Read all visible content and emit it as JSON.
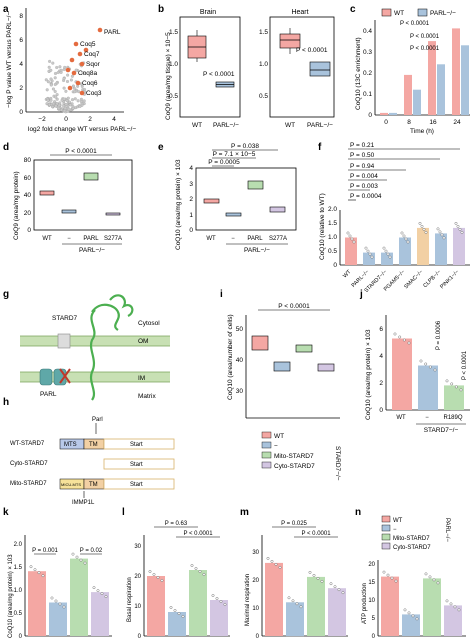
{
  "colors": {
    "wt": "#f4a7a3",
    "ko": "#a9c3dc",
    "green": "#b8ddb0",
    "purple": "#d3c6e2",
    "orange": "#f2d0a4",
    "volcano_hit": "#e46b3f",
    "volcano_grey": "#c9c9c9",
    "box_grey": "#e6e6e6"
  },
  "labels": {
    "a": "a",
    "b": "b",
    "c": "c",
    "d": "d",
    "e": "e",
    "f": "f",
    "g": "g",
    "h": "h",
    "i": "i",
    "j": "j",
    "k": "k",
    "l": "l",
    "m": "m",
    "n": "n"
  },
  "panel_a": {
    "ylabel": "−log P value WT versus PARL−/−",
    "xlabel": "log2 fold change WT versus PARL−/−",
    "yticks": [
      "0",
      "2",
      "4",
      "6",
      "8"
    ],
    "xticks": [
      "−2",
      "0",
      "2",
      "4"
    ],
    "hits": [
      "PARL",
      "Coq5",
      "Coq7",
      "Sqor",
      "Coq8a",
      "Coq6",
      "Coq3"
    ]
  },
  "panel_b": {
    "ylabel": "CoQ9 (area/mg tissue) × 10−5",
    "brain": {
      "title": "Brain",
      "p": "P < 0.0001",
      "categories": [
        "WT",
        "PARL−/−"
      ],
      "yticks": [
        "0.5",
        "1.0",
        "1.5"
      ]
    },
    "heart": {
      "title": "Heart",
      "p": "P < 0.0001",
      "categories": [
        "WT",
        "PARL−/−"
      ],
      "yticks": [
        "0.5",
        "1.0",
        "1.5"
      ]
    }
  },
  "panel_c": {
    "ylabel": "CoQ10 (13C enrichment)",
    "xlabel": "Time (h)",
    "legend": [
      "WT",
      "PARL−/−"
    ],
    "x": [
      "0",
      "8",
      "16",
      "24"
    ],
    "yticks": [
      "0",
      "0.1",
      "0.2",
      "0.3",
      "0.4"
    ],
    "pvals": [
      "P < 0.0001",
      "P < 0.0001",
      "P < 0.0001"
    ]
  },
  "panel_d": {
    "ylabel": "CoQ9 (area/mg protein)",
    "yticks": [
      "0",
      "20",
      "40",
      "60",
      "80"
    ],
    "categories": [
      "WT",
      "−",
      "PARL",
      "S277A"
    ],
    "group": "PARL−/−",
    "p": "P < 0.0001"
  },
  "panel_e": {
    "ylabel": "CoQ10 (area/mg protein) × 103",
    "yticks": [
      "0",
      "1",
      "2",
      "3",
      "4"
    ],
    "categories": [
      "WT",
      "−",
      "PARL",
      "S277A"
    ],
    "group": "PARL−/−",
    "pvals": [
      "P = 0.038",
      "P = 7.1 × 10−5",
      "P = 0.0005"
    ]
  },
  "panel_f": {
    "ylabel": "CoQ10 (relative to WT)",
    "yticks": [
      "0",
      "0.5",
      "1.0",
      "1.5",
      "2.0"
    ],
    "categories": [
      "WT",
      "PARL−/−",
      "STARD7−/−",
      "PGAM5−/−",
      "SMAC−/−",
      "CLPB−/−",
      "PINK1−/−"
    ],
    "pvals": [
      "P = 0.21",
      "P = 0.50",
      "P = 0.94",
      "P = 0.004",
      "P = 0.003",
      "P = 0.0004"
    ]
  },
  "panel_g": {
    "labels": [
      "STARD7",
      "Cytosol",
      "OM",
      "IM",
      "PARL",
      "Matrix"
    ]
  },
  "panel_h": {
    "rows": [
      "WT-STARD7",
      "Cyto-STARD7",
      "Mito-STARD7"
    ],
    "segments": {
      "mts": "MTS",
      "tm": "TM",
      "start": "Start",
      "micu": "MICU-MTS"
    },
    "annot": {
      "parl": "Parl",
      "immp1l": "IMMP1L"
    }
  },
  "panel_i": {
    "ylabel": "CoQ10 (area/number of cells)",
    "yticks": [
      "30",
      "40",
      "50"
    ],
    "p": "P < 0.0001",
    "legend": [
      "WT",
      "−",
      "Mito-STARD7",
      "Cyto-STARD7"
    ],
    "group": "STARD7−/−"
  },
  "panel_j": {
    "ylabel": "CoQ10 (area/mg protein) × 103",
    "yticks": [
      "0",
      "2",
      "4",
      "6"
    ],
    "categories": [
      "WT",
      "−",
      "R189Q"
    ],
    "group": "STARD7−/−",
    "pvals": [
      "P = 0.0006",
      "P < 0.0001"
    ]
  },
  "panel_k": {
    "ylabel": "CoQ10 (area/mg protein) × 103",
    "yticks": [
      "0",
      "0.5",
      "1.0",
      "1.5",
      "2.0"
    ],
    "pvals": [
      "P = 0.001",
      "P = 0.02"
    ]
  },
  "panel_l": {
    "ylabel": "Basal respiration",
    "yticks": [
      "0",
      "10",
      "20",
      "30"
    ],
    "pvals": [
      "P = 0.63",
      "P < 0.0001"
    ]
  },
  "panel_m": {
    "ylabel": "Maximal respiration",
    "yticks": [
      "0",
      "10",
      "20",
      "30"
    ],
    "pvals": [
      "P = 0.025",
      "P < 0.0001"
    ]
  },
  "panel_n": {
    "ylabel": "ATP production",
    "yticks": [
      "0",
      "5",
      "10",
      "15",
      "20"
    ],
    "legend": [
      "WT",
      "−",
      "Mito-STARD7",
      "Cyto-STARD7"
    ],
    "group": "PARL−/−"
  },
  "chart_data": [
    {
      "panel": "b-brain",
      "type": "box",
      "categories": [
        "WT",
        "PARL−/−"
      ],
      "values": [
        1.15,
        0.5
      ],
      "ylim": [
        0.3,
        1.6
      ]
    },
    {
      "panel": "b-heart",
      "type": "box",
      "categories": [
        "WT",
        "PARL−/−"
      ],
      "values": [
        0.8,
        0.45
      ],
      "ylim": [
        0.3,
        1.6
      ]
    },
    {
      "panel": "c",
      "type": "bar",
      "categories": [
        "0",
        "8",
        "16",
        "24"
      ],
      "series": [
        {
          "name": "WT",
          "values": [
            0.01,
            0.19,
            0.35,
            0.41
          ]
        },
        {
          "name": "PARL−/−",
          "values": [
            0.01,
            0.12,
            0.24,
            0.33
          ]
        }
      ],
      "ylim": [
        0,
        0.45
      ]
    },
    {
      "panel": "d",
      "type": "box",
      "categories": [
        "WT",
        "−",
        "PARL",
        "S277A"
      ],
      "values": [
        42,
        21,
        66,
        17
      ],
      "ylim": [
        0,
        80
      ]
    },
    {
      "panel": "e",
      "type": "box",
      "categories": [
        "WT",
        "−",
        "PARL",
        "S277A"
      ],
      "values": [
        2.3,
        1.85,
        2.9,
        2.0
      ],
      "ylim": [
        0,
        4
      ]
    },
    {
      "panel": "f",
      "type": "bar",
      "categories": [
        "WT",
        "PARL−/−",
        "STARD7−/−",
        "PGAM5−/−",
        "SMAC−/−",
        "CLPB−/−",
        "PINK1−/−"
      ],
      "values": [
        1.0,
        0.45,
        0.45,
        1.0,
        1.35,
        1.15,
        1.35
      ],
      "ylim": [
        0,
        2
      ]
    },
    {
      "panel": "i",
      "type": "box",
      "categories": [
        "WT",
        "−",
        "Mito-STARD7",
        "Cyto-STARD7"
      ],
      "values": [
        44,
        33,
        38,
        33
      ],
      "ylim": [
        27,
        52
      ]
    },
    {
      "panel": "j",
      "type": "bar",
      "categories": [
        "WT",
        "−",
        "R189Q"
      ],
      "values": [
        6.1,
        3.8,
        2.1
      ],
      "ylim": [
        0,
        7
      ]
    },
    {
      "panel": "k",
      "type": "bar",
      "categories": [
        "WT",
        "−",
        "Mito-STARD7",
        "Cyto-STARD7"
      ],
      "values": [
        1.55,
        0.8,
        1.85,
        1.05
      ],
      "ylim": [
        0,
        2.2
      ]
    },
    {
      "panel": "l",
      "type": "bar",
      "categories": [
        "WT",
        "−",
        "Mito-STARD7",
        "Cyto-STARD7"
      ],
      "values": [
        20,
        8,
        22,
        12
      ],
      "ylim": [
        0,
        30
      ]
    },
    {
      "panel": "m",
      "type": "bar",
      "categories": [
        "WT",
        "−",
        "Mito-STARD7",
        "Cyto-STARD7"
      ],
      "values": [
        26,
        12,
        21,
        17
      ],
      "ylim": [
        0,
        32
      ]
    },
    {
      "panel": "n",
      "type": "bar",
      "categories": [
        "WT",
        "−",
        "Mito-STARD7",
        "Cyto-STARD7"
      ],
      "values": [
        16.5,
        6,
        16,
        8.5
      ],
      "ylim": [
        0,
        20
      ]
    }
  ]
}
